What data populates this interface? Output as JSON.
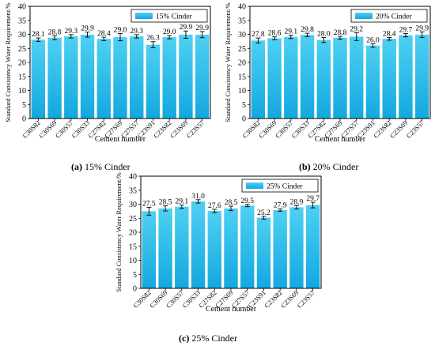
{
  "colors": {
    "bar_top": "#4fd0f2",
    "bar_bottom": "#12a8e0",
    "axis": "#000000"
  },
  "chart_data": [
    {
      "type": "bar",
      "panel_label": "(a)",
      "caption": "15% Cinder",
      "categories": [
        "C30S82",
        "C30S69",
        "C30S57",
        "C30S33",
        "C27S82",
        "C27S69",
        "C27S57",
        "C23S91",
        "C23S82",
        "C23S69",
        "C23S57"
      ],
      "values": [
        28.1,
        28.8,
        29.3,
        29.9,
        28.4,
        29.0,
        29.3,
        26.3,
        29.0,
        29.9,
        29.9
      ],
      "value_labels": [
        "28.1",
        "28.8",
        "29.3",
        "29.9",
        "28.4",
        "29.0",
        "29.3",
        "26.3",
        "29.0",
        "29.9",
        "29.9"
      ],
      "errors": [
        0.6,
        0.7,
        0.6,
        0.9,
        0.6,
        1.3,
        0.6,
        1.1,
        0.6,
        1.3,
        1.1
      ],
      "legend": "15% Cinder",
      "xlabel": "Cement number",
      "ylabel": "Standard Consistency Water Requirement/%",
      "ylim": [
        0,
        40
      ],
      "yticks": [
        0,
        5,
        10,
        15,
        20,
        25,
        30,
        35,
        40
      ],
      "ytick_labels": [
        "0",
        "5",
        "10",
        "15",
        "20",
        "25",
        "30",
        "35",
        "40"
      ],
      "legend_position": "top-right",
      "grid": false
    },
    {
      "type": "bar",
      "panel_label": "(b)",
      "caption": "20% Cinder",
      "categories": [
        "C30S82",
        "C30S69",
        "C30S57",
        "C30S33",
        "C27S82",
        "C27S69",
        "C27S57",
        "C23S91",
        "C23S82",
        "C23S69",
        "C23S57"
      ],
      "values": [
        27.8,
        28.6,
        29.1,
        29.8,
        28.0,
        28.8,
        29.2,
        26.0,
        28.4,
        29.7,
        29.9
      ],
      "value_labels": [
        "27.8",
        "28.6",
        "29.1",
        "29.8",
        "28.0",
        "28.8",
        "29.2",
        "26.0",
        "28.4",
        "29.7",
        "29.9"
      ],
      "errors": [
        0.9,
        0.5,
        0.6,
        0.6,
        0.9,
        0.5,
        1.4,
        0.6,
        0.5,
        0.6,
        1.0
      ],
      "legend": "20% Cinder",
      "xlabel": "Cement number",
      "ylabel": "Standard Consistency Water Requirement/%",
      "ylim": [
        0,
        40
      ],
      "yticks": [
        0,
        5,
        10,
        15,
        20,
        25,
        30,
        35,
        40
      ],
      "ytick_labels": [
        "0",
        "5",
        "10",
        "15",
        "20",
        "25",
        "30",
        "35",
        "40"
      ],
      "legend_position": "top-right",
      "grid": false
    },
    {
      "type": "bar",
      "panel_label": "(c)",
      "caption": "25% Cinder",
      "categories": [
        "C30S82",
        "C30S69",
        "C30S57",
        "C30S33",
        "C27S82",
        "C27S69",
        "C27S57",
        "C23S91",
        "C23S82",
        "C23S69",
        "C23S57"
      ],
      "values": [
        27.5,
        28.5,
        29.1,
        31.0,
        27.6,
        28.5,
        29.5,
        25.2,
        27.9,
        28.9,
        29.7
      ],
      "value_labels": [
        "27.5",
        "28.5",
        "29.1",
        "31.0",
        "27.6",
        "28.5",
        "29.5",
        "25.2",
        "27.9",
        "28.9",
        "29.7"
      ],
      "errors": [
        1.4,
        0.9,
        0.6,
        0.6,
        0.6,
        0.8,
        0.4,
        0.5,
        0.4,
        0.6,
        1.0
      ],
      "legend": "25% Cinder",
      "xlabel": "Cement number",
      "ylabel": "Standard Consistency Water Requirement/%",
      "ylim": [
        0,
        40
      ],
      "yticks": [
        0,
        5,
        10,
        15,
        20,
        25,
        30,
        35,
        40
      ],
      "ytick_labels": [
        "0",
        "5",
        "10",
        "15",
        "20",
        "25",
        "30",
        "35",
        "40"
      ],
      "legend_position": "top-right",
      "grid": false
    }
  ]
}
